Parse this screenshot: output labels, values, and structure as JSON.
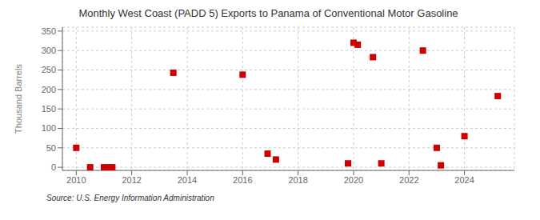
{
  "chart_data": {
    "type": "scatter",
    "title": "Monthly West Coast (PADD 5) Exports to Panama of Conventional Motor Gasoline",
    "ylabel": "Thousand Barrels",
    "annotation": "Source: U.S. Energy Information Administration",
    "color": "#cc0000",
    "marker": "square",
    "grid": true,
    "xlim": [
      2009.5,
      2025.8
    ],
    "ylim": [
      -8,
      360
    ],
    "xticks": [
      2010,
      2012,
      2014,
      2016,
      2018,
      2020,
      2022,
      2024
    ],
    "yticks": [
      0,
      50,
      100,
      150,
      200,
      250,
      300,
      350
    ],
    "x": [
      2010.0,
      2010.5,
      2011.0,
      2011.15,
      2011.3,
      2013.5,
      2016.0,
      2016.9,
      2017.2,
      2019.8,
      2020.0,
      2020.15,
      2020.7,
      2021.0,
      2022.5,
      2023.0,
      2023.15,
      2024.0,
      2025.2
    ],
    "values": [
      50,
      0,
      0,
      0,
      0,
      243,
      238,
      35,
      20,
      10,
      320,
      315,
      283,
      10,
      300,
      50,
      5,
      80,
      183
    ]
  }
}
